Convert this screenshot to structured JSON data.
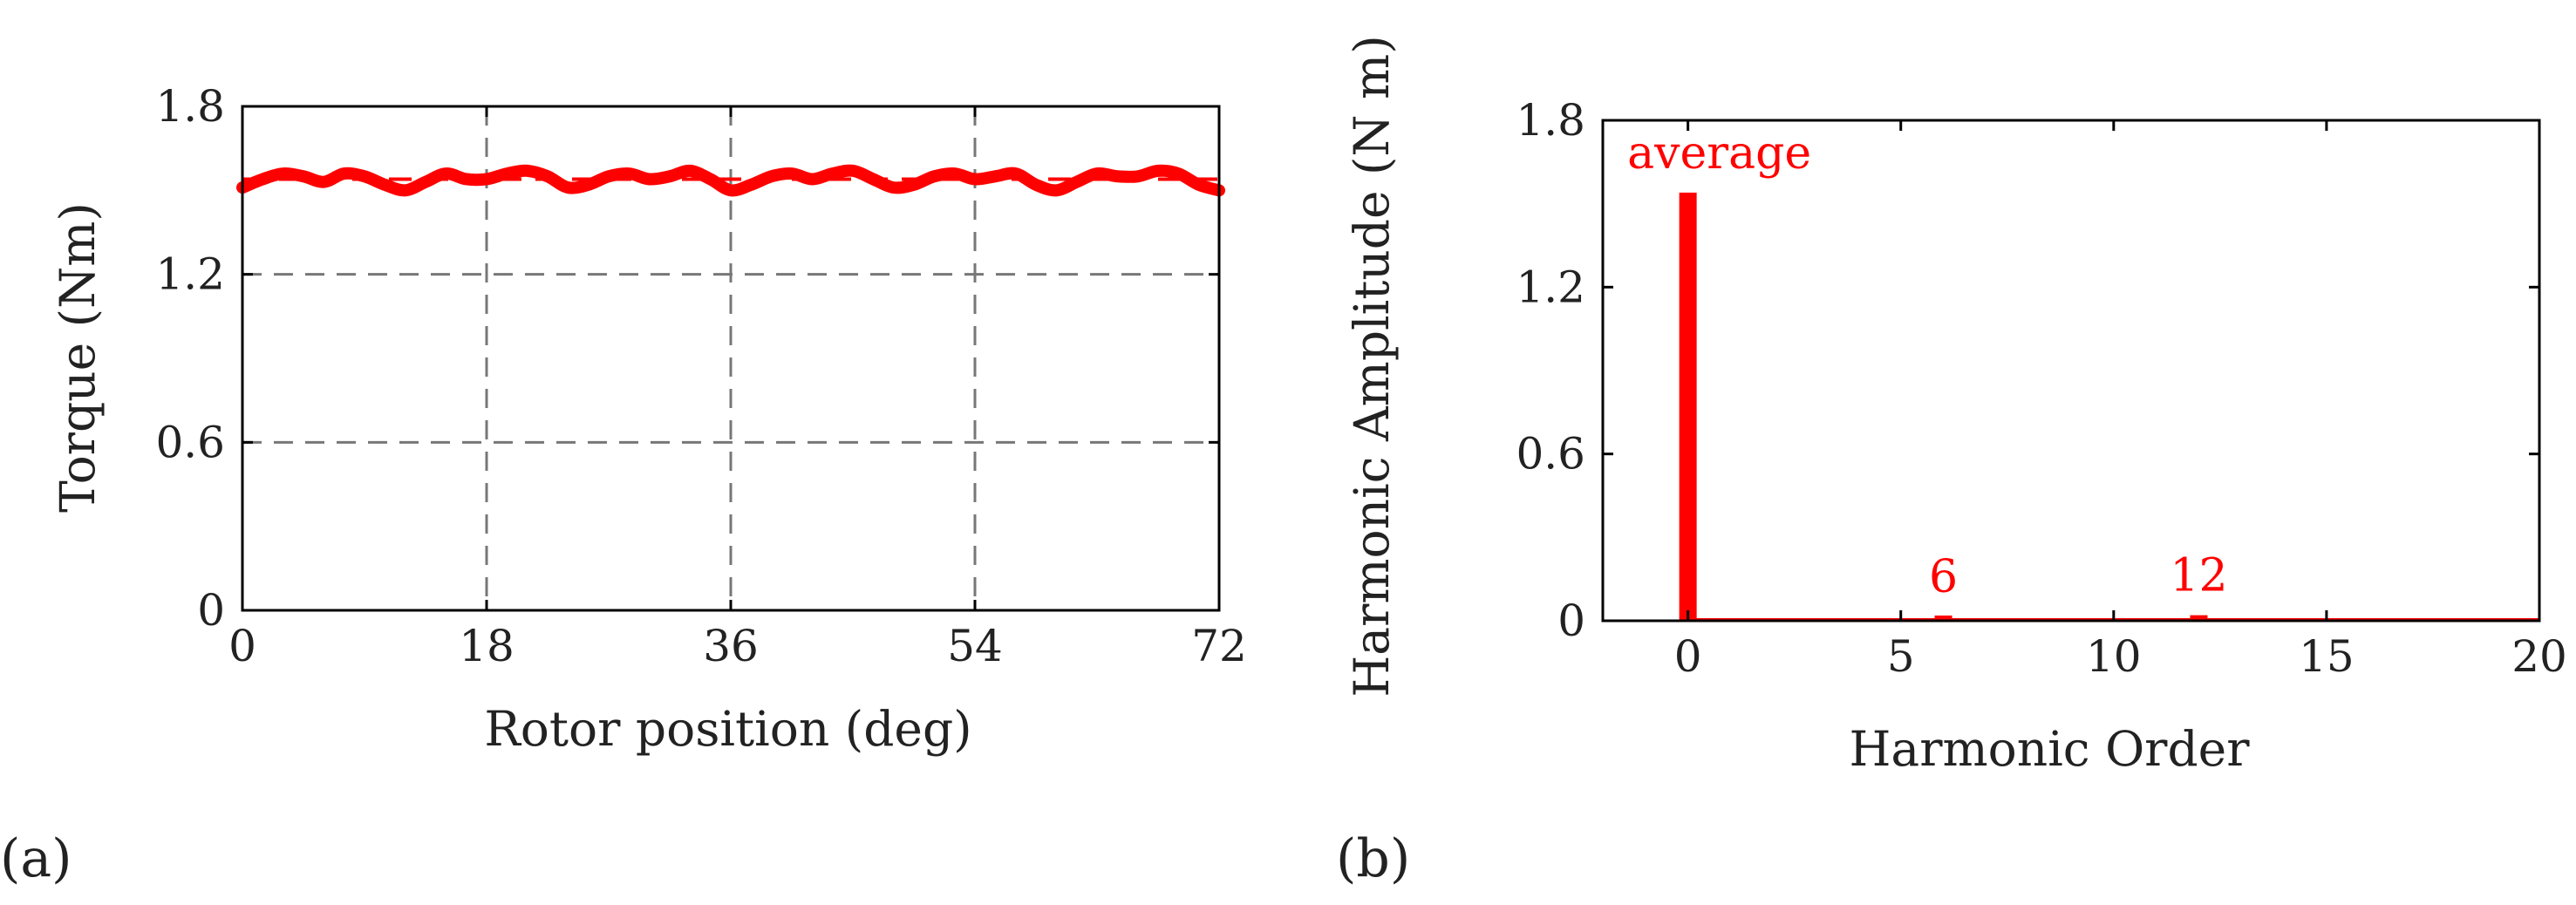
{
  "figure": {
    "panel_a_label": "(a)",
    "panel_b_label": "(b)"
  },
  "colors": {
    "series": "#ff0000",
    "grid": "#777777",
    "axis": "#000000"
  },
  "chart_data": [
    {
      "type": "line",
      "title": "",
      "xlabel": "Rotor position (deg)",
      "ylabel": "Torque (Nm)",
      "xlim": [
        0,
        72
      ],
      "ylim": [
        0,
        1.8
      ],
      "xticks": [
        0,
        18,
        36,
        54,
        72
      ],
      "xtick_labels": [
        "0",
        "18",
        "36",
        "54",
        "72"
      ],
      "yticks": [
        0,
        0.6,
        1.2,
        1.8
      ],
      "ytick_labels": [
        "0",
        "0.6",
        "1.2",
        "1.8"
      ],
      "grid": true,
      "series": [
        {
          "name": "Torque",
          "x": [
            0,
            1.5,
            3,
            4.5,
            6,
            7.5,
            9,
            10.5,
            12,
            13.5,
            15,
            16.5,
            18,
            19.5,
            21,
            22.5,
            24,
            25.5,
            27,
            28.5,
            30,
            31.5,
            33,
            34.5,
            36,
            37.5,
            39,
            40.5,
            42,
            43.5,
            45,
            46.5,
            48,
            49.5,
            51,
            52.5,
            54,
            55.5,
            57,
            58.5,
            60,
            61.5,
            63,
            64.5,
            66,
            67.5,
            69,
            70.5,
            72
          ],
          "values": [
            1.51,
            1.54,
            1.56,
            1.55,
            1.53,
            1.56,
            1.55,
            1.52,
            1.5,
            1.53,
            1.56,
            1.54,
            1.54,
            1.56,
            1.57,
            1.55,
            1.51,
            1.52,
            1.55,
            1.56,
            1.54,
            1.55,
            1.57,
            1.54,
            1.5,
            1.52,
            1.55,
            1.56,
            1.54,
            1.56,
            1.57,
            1.54,
            1.51,
            1.52,
            1.55,
            1.56,
            1.54,
            1.55,
            1.56,
            1.52,
            1.5,
            1.53,
            1.56,
            1.55,
            1.55,
            1.57,
            1.56,
            1.52,
            1.5
          ]
        }
      ],
      "reference_line": 1.54
    },
    {
      "type": "bar",
      "title": "",
      "xlabel": "Harmonic Order",
      "ylabel": "Harmonic Amplitude (N m)",
      "xlim": [
        -2,
        20
      ],
      "ylim": [
        0,
        1.8
      ],
      "xticks": [
        0,
        5,
        10,
        15,
        20
      ],
      "xtick_labels": [
        "0",
        "5",
        "10",
        "15",
        "20"
      ],
      "yticks": [
        0,
        0.6,
        1.2,
        1.8
      ],
      "ytick_labels": [
        "0",
        "0.6",
        "1.2",
        "1.8"
      ],
      "grid": false,
      "categories": [
        0,
        6,
        12
      ],
      "values": [
        1.54,
        0.015,
        0.02
      ],
      "annotations": [
        {
          "x": 0,
          "label": "average"
        },
        {
          "x": 6,
          "label": "6"
        },
        {
          "x": 12,
          "label": "12"
        }
      ]
    }
  ]
}
